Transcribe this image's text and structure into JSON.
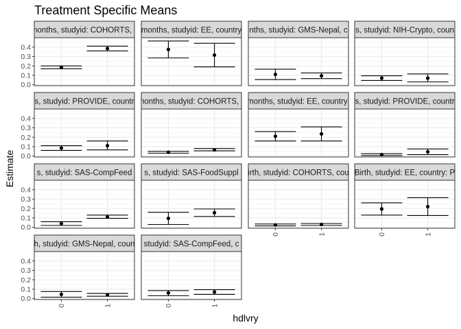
{
  "chart_data": {
    "type": "errorbar",
    "title": "Treatment Specific Means",
    "xlabel": "hdlvry",
    "ylabel": "Estimate",
    "ylim": [
      -0.01,
      0.5
    ],
    "yticks": [
      0.0,
      0.1,
      0.2,
      0.3,
      0.4
    ],
    "ytick_labels": [
      "0.0",
      "0.1",
      "0.2",
      "0.3",
      "0.4"
    ],
    "categories": [
      "0",
      "1"
    ],
    "grid": true,
    "facet_layout": {
      "rows": 4,
      "cols": 4
    },
    "panels": [
      {
        "strip": "months, studyid: COHORTS, c",
        "points": [
          {
            "x": "0",
            "est": 0.185,
            "lo": 0.17,
            "hi": 0.2
          },
          {
            "x": "1",
            "est": 0.385,
            "lo": 0.36,
            "hi": 0.41
          }
        ]
      },
      {
        "strip": "months, studyid: EE, country",
        "points": [
          {
            "x": "0",
            "est": 0.375,
            "lo": 0.285,
            "hi": 0.465
          },
          {
            "x": "1",
            "est": 0.315,
            "lo": 0.19,
            "hi": 0.44
          }
        ]
      },
      {
        "strip": "nths, studyid: GMS-Nepal, c",
        "points": [
          {
            "x": "0",
            "est": 0.11,
            "lo": 0.055,
            "hi": 0.165
          },
          {
            "x": "1",
            "est": 0.095,
            "lo": 0.065,
            "hi": 0.125
          }
        ]
      },
      {
        "strip": "s, studyid: NIH-Crypto, coun",
        "points": [
          {
            "x": "0",
            "est": 0.07,
            "lo": 0.045,
            "hi": 0.095
          },
          {
            "x": "1",
            "est": 0.07,
            "lo": 0.03,
            "hi": 0.115
          }
        ]
      },
      {
        "strip": "s, studyid: PROVIDE, countr",
        "points": [
          {
            "x": "0",
            "est": 0.085,
            "lo": 0.06,
            "hi": 0.11
          },
          {
            "x": "1",
            "est": 0.11,
            "lo": 0.065,
            "hi": 0.16
          }
        ]
      },
      {
        "strip": "months, studyid: COHORTS, c",
        "points": [
          {
            "x": "0",
            "est": 0.04,
            "lo": 0.03,
            "hi": 0.05
          },
          {
            "x": "1",
            "est": 0.065,
            "lo": 0.055,
            "hi": 0.08
          }
        ]
      },
      {
        "strip": "months, studyid: EE, country:",
        "points": [
          {
            "x": "0",
            "est": 0.21,
            "lo": 0.16,
            "hi": 0.26
          },
          {
            "x": "1",
            "est": 0.235,
            "lo": 0.16,
            "hi": 0.31
          }
        ]
      },
      {
        "strip": "s, studyid: PROVIDE, countr",
        "points": [
          {
            "x": "0",
            "est": 0.015,
            "lo": 0.005,
            "hi": 0.025
          },
          {
            "x": "1",
            "est": 0.045,
            "lo": 0.015,
            "hi": 0.075
          }
        ]
      },
      {
        "strip": "s, studyid: SAS-CompFeed",
        "points": [
          {
            "x": "0",
            "est": 0.04,
            "lo": 0.02,
            "hi": 0.06
          },
          {
            "x": "1",
            "est": 0.11,
            "lo": 0.095,
            "hi": 0.13
          }
        ]
      },
      {
        "strip": "s, studyid: SAS-FoodSuppl",
        "points": [
          {
            "x": "0",
            "est": 0.095,
            "lo": 0.03,
            "hi": 0.16
          },
          {
            "x": "1",
            "est": 0.155,
            "lo": 0.115,
            "hi": 0.195
          }
        ]
      },
      {
        "strip": "irth, studyid: COHORTS, cou",
        "points": [
          {
            "x": "0",
            "est": 0.025,
            "lo": 0.015,
            "hi": 0.035
          },
          {
            "x": "1",
            "est": 0.03,
            "lo": 0.02,
            "hi": 0.04
          }
        ]
      },
      {
        "strip": "Birth, studyid: EE, country: P",
        "points": [
          {
            "x": "0",
            "est": 0.195,
            "lo": 0.13,
            "hi": 0.26
          },
          {
            "x": "1",
            "est": 0.22,
            "lo": 0.125,
            "hi": 0.315
          }
        ]
      },
      {
        "strip": "h, studyid: GMS-Nepal, coun",
        "points": [
          {
            "x": "0",
            "est": 0.045,
            "lo": 0.015,
            "hi": 0.075
          },
          {
            "x": "1",
            "est": 0.04,
            "lo": 0.025,
            "hi": 0.055
          }
        ]
      },
      {
        "strip": "studyid: SAS-CompFeed, c",
        "points": [
          {
            "x": "0",
            "est": 0.06,
            "lo": 0.03,
            "hi": 0.085
          },
          {
            "x": "1",
            "est": 0.07,
            "lo": 0.045,
            "hi": 0.095
          }
        ]
      }
    ]
  }
}
